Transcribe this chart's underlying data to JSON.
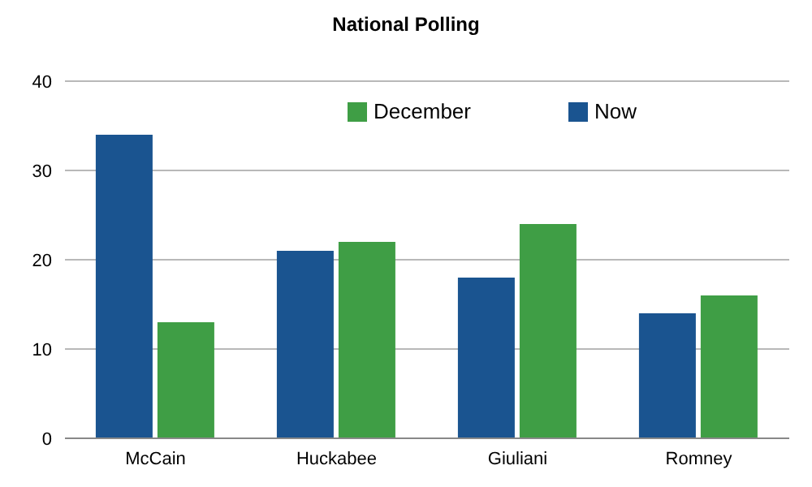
{
  "chart_data": {
    "type": "bar",
    "title": "National Polling",
    "categories": [
      "McCain",
      "Huckabee",
      "Giuliani",
      "Romney"
    ],
    "series": [
      {
        "name": "Now",
        "color": "#1a5490",
        "values": [
          34,
          21,
          18,
          14
        ]
      },
      {
        "name": "December",
        "color": "#3f9e45",
        "values": [
          13,
          22,
          24,
          16
        ]
      }
    ],
    "ylim": [
      0,
      40
    ],
    "yticks": [
      0,
      10,
      20,
      30,
      40
    ],
    "grid": "y",
    "legend": "top right"
  }
}
